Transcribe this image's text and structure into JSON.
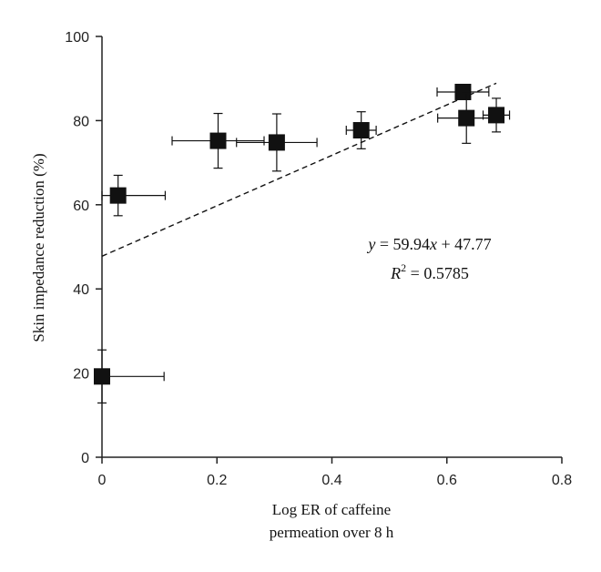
{
  "chart_data": {
    "type": "scatter",
    "xlabel_line1": "Log ER of caffeine",
    "xlabel_line2": "permeation over 8 h",
    "ylabel": "Skin impedance reduction (%)",
    "xlim": [
      0,
      0.8
    ],
    "ylim": [
      0,
      100
    ],
    "x_ticks": [
      0,
      0.2,
      0.4,
      0.6,
      0.8
    ],
    "x_tick_labels": [
      "0",
      "0.2",
      "0.4",
      "0.6",
      "0.8"
    ],
    "y_ticks": [
      0,
      20,
      40,
      60,
      80,
      100
    ],
    "y_tick_labels": [
      "0",
      "20",
      "40",
      "60",
      "80",
      "100"
    ],
    "grid": false,
    "marker": "filled-square",
    "points": [
      {
        "x": 0.0,
        "y": 19.2,
        "xerr": [
          0.0,
          0.108
        ],
        "yerr": [
          6.3,
          6.3
        ]
      },
      {
        "x": 0.028,
        "y": 62.2,
        "xerr": [
          0.028,
          0.082
        ],
        "yerr": [
          4.8,
          4.8
        ]
      },
      {
        "x": 0.202,
        "y": 75.2,
        "xerr": [
          0.08,
          0.08
        ],
        "yerr": [
          6.5,
          6.5
        ]
      },
      {
        "x": 0.304,
        "y": 74.8,
        "xerr": [
          0.07,
          0.07
        ],
        "yerr": [
          6.8,
          6.8
        ]
      },
      {
        "x": 0.451,
        "y": 77.7,
        "xerr": [
          0.026,
          0.026
        ],
        "yerr": [
          4.4,
          4.4
        ]
      },
      {
        "x": 0.628,
        "y": 86.8,
        "xerr": [
          0.045,
          0.045
        ],
        "yerr": [
          0.0,
          0.0
        ]
      },
      {
        "x": 0.634,
        "y": 80.6,
        "xerr": [
          0.05,
          0.05
        ],
        "yerr": [
          6.0,
          6.0
        ]
      },
      {
        "x": 0.686,
        "y": 81.3,
        "xerr": [
          0.023,
          0.023
        ],
        "yerr": [
          4.0,
          4.0
        ]
      }
    ],
    "fit": {
      "slope": 59.94,
      "intercept": 47.77,
      "x_range": [
        0,
        0.686
      ],
      "style": "dashed"
    },
    "annotation": {
      "eq_y": "y",
      "eq_eq": " = 59.94",
      "eq_x": "x",
      "eq_rest": " + 47.77",
      "r2_r": "R",
      "r2_sup": "2",
      "r2_rest": " = 0.5785"
    },
    "colors": {
      "marker": "#111111",
      "line": "#111111",
      "axis": "#222222"
    }
  }
}
